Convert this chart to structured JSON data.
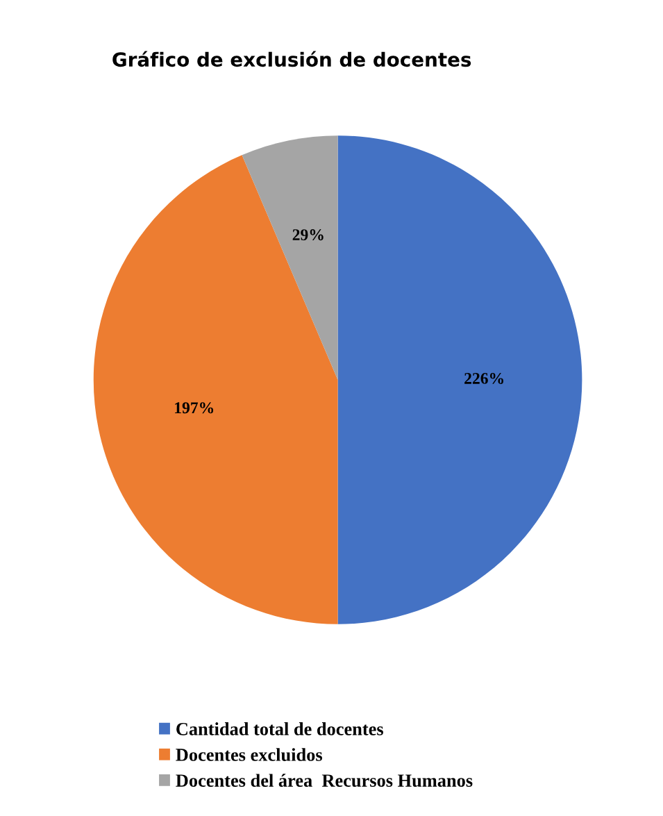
{
  "chart_data": {
    "type": "pie",
    "title": "Gráfico de exclusión de docentes",
    "categories": [
      "Cantidad total de docentes",
      "Docentes excluidos",
      "Docentes del área  Recursos Humanos"
    ],
    "values": [
      226,
      197,
      29
    ],
    "colors": [
      "#4472c4",
      "#ed7d31",
      "#a5a5a5"
    ],
    "value_labels": [
      "226%",
      "197%",
      "29%"
    ],
    "legend": "bottom"
  }
}
